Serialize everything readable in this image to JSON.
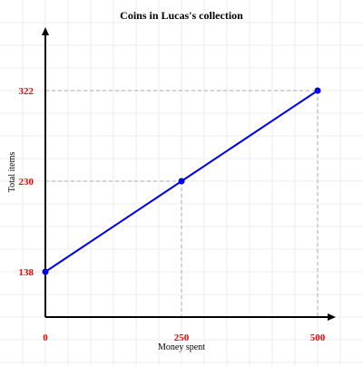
{
  "chart_data": {
    "type": "line",
    "title": "Coins in Lucas's collection",
    "xlabel": "Money spent",
    "ylabel": "Total items",
    "x_ticks": [
      "0",
      "250",
      "500"
    ],
    "y_ticks": [
      "138",
      "230",
      "322"
    ],
    "series": [
      {
        "x": [
          0,
          250,
          500
        ],
        "y": [
          138,
          230,
          322
        ]
      }
    ],
    "xlim": [
      0,
      530
    ],
    "ylim": [
      92,
      378
    ],
    "grid": true,
    "colors": {
      "line": "#0000ee",
      "point": "#0000ee",
      "tick_label": "#ff0000",
      "guide": "#aaaaaa",
      "grid": "#eeeeee",
      "axis": "#000000"
    }
  }
}
